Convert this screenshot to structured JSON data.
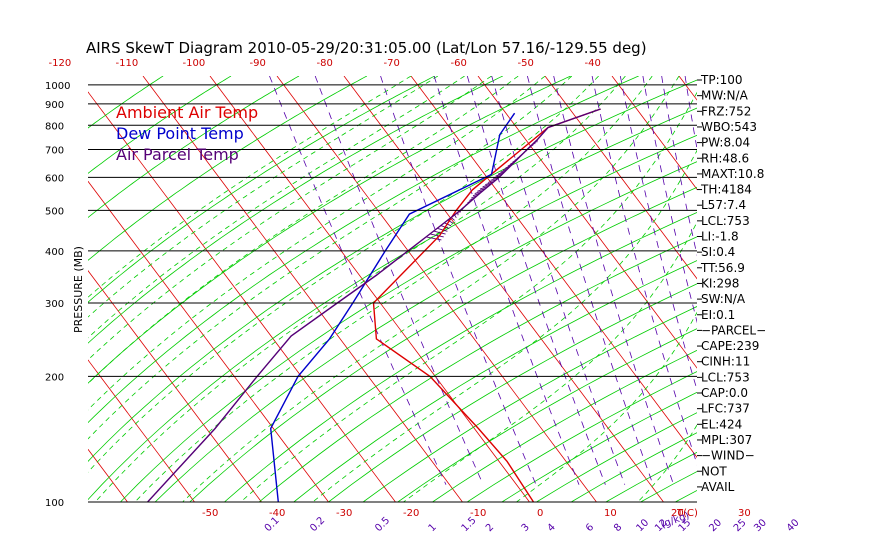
{
  "chart_data": {
    "type": "line",
    "title": "AIRS SkewT Diagram 2010-05-29/20:31:05.00 (Lat/Lon 57.16/-129.55 deg)",
    "ylabel": "PRESSURE (MB)",
    "x_unit_label": "T(C)",
    "mixing_ratio_unit_label": "(g/kg)",
    "pressure_ticks": [
      100,
      200,
      300,
      400,
      500,
      600,
      700,
      800,
      900,
      1000
    ],
    "top_temp_ticks": [
      -120,
      -110,
      -100,
      -90,
      -80,
      -70,
      -60,
      -50,
      -40
    ],
    "bottom_temp_ticks": [
      -50,
      -40,
      -30,
      -20,
      -10,
      0,
      10,
      20,
      30
    ],
    "mixing_ratio_labels": [
      "0.1",
      "0.2",
      "0.5",
      "1",
      "1.5",
      "2",
      "3",
      "4",
      "6",
      "8",
      "10",
      "12",
      "15",
      "20",
      "25",
      "30",
      "40"
    ],
    "mixing_ratio_values": [
      0.1,
      0.2,
      0.5,
      1,
      1.5,
      2,
      3,
      4,
      6,
      8,
      10,
      12,
      15,
      20,
      25,
      30,
      40
    ],
    "colors": {
      "ambient": "#dd0000",
      "dewpoint": "#0000cc",
      "parcel": "#550077",
      "isotherm": "#dd0000",
      "dry_adiabat": "#00cc00",
      "moist_adiabat": "#00cc00",
      "mixing_ratio": "#5500aa",
      "isobar": "#000000"
    },
    "series": [
      {
        "name": "Ambient Air Temp",
        "points": [
          [
            875,
            4.6
          ],
          [
            790,
            -5.3
          ],
          [
            560,
            -23.6
          ],
          [
            500,
            -28.3
          ],
          [
            435,
            -33.6
          ],
          [
            300,
            -51.0
          ],
          [
            246,
            -54.6
          ],
          [
            200,
            -50.8
          ],
          [
            150,
            -49.4
          ],
          [
            125,
            -48.8
          ],
          [
            100,
            -49.4
          ]
        ]
      },
      {
        "name": "Dew Point Temp",
        "points": [
          [
            855,
            -8.7
          ],
          [
            760,
            -13.3
          ],
          [
            610,
            -19.0
          ],
          [
            490,
            -35.7
          ],
          [
            398,
            -43.6
          ],
          [
            300,
            -54.1
          ],
          [
            246,
            -61.6
          ],
          [
            200,
            -70.5
          ],
          [
            150,
            -80.4
          ],
          [
            100,
            -87.5
          ]
        ]
      },
      {
        "name": "Air Parcel Temp",
        "points": [
          [
            875,
            4.6
          ],
          [
            790,
            -5.3
          ],
          [
            740,
            -8.2
          ],
          [
            700,
            -10.9
          ],
          [
            650,
            -14.4
          ],
          [
            600,
            -18.2
          ],
          [
            550,
            -22.8
          ],
          [
            500,
            -27.7
          ],
          [
            450,
            -33.5
          ],
          [
            400,
            -40.0
          ],
          [
            350,
            -47.4
          ],
          [
            300,
            -56.4
          ],
          [
            250,
            -67.0
          ],
          [
            200,
            -76.6
          ],
          [
            150,
            -88.7
          ],
          [
            100,
            -107.0
          ]
        ]
      }
    ],
    "cape_hatch_range_mb": [
      430,
      740
    ],
    "grid": true
  },
  "indices": [
    "TP:100",
    "MW:N/A",
    "FRZ:752",
    "WBO:543",
    "PW:8.04",
    "RH:48.6",
    "MAXT:10.8",
    "TH:4184",
    "L57:7.4",
    "LCL:753",
    "LI:-1.8",
    "SI:0.4",
    "TT:56.9",
    "KI:298",
    "SW:N/A",
    "EI:0.1",
    "−PARCEL−",
    "CAPE:239",
    "CINH:11",
    "LCL:753",
    "CAP:0.0",
    "LFC:737",
    "EL:424",
    "MPL:307",
    "−WIND−",
    "NOT",
    "AVAIL"
  ]
}
